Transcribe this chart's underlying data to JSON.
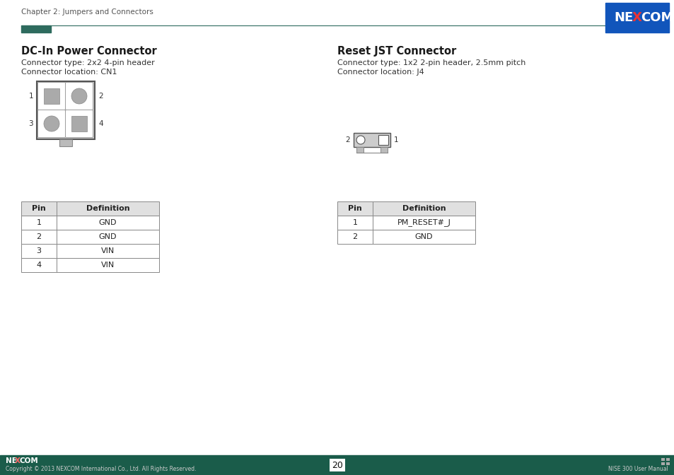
{
  "bg_color": "#ffffff",
  "header_accent_color": "#2e6b5e",
  "header_text": "Chapter 2: Jumpers and Connectors",
  "footer_bg_color": "#1a5c4a",
  "footer_text_left": "Copyright © 2013 NEXCOM International Co., Ltd. All Rights Reserved.",
  "footer_text_center": "20",
  "footer_text_right": "NISE 300 User Manual",
  "nexcom_bg": "#1155bb",
  "left_section": {
    "title": "DC-In Power Connector",
    "line1": "Connector type: 2x2 4-pin header",
    "line2": "Connector location: CN1",
    "table_headers": [
      "Pin",
      "Definition"
    ],
    "table_rows": [
      [
        "1",
        "GND"
      ],
      [
        "2",
        "GND"
      ],
      [
        "3",
        "VIN"
      ],
      [
        "4",
        "VIN"
      ]
    ]
  },
  "right_section": {
    "title": "Reset JST Connector",
    "line1": "Connector type: 1x2 2-pin header, 2.5mm pitch",
    "line2": "Connector location: J4",
    "table_headers": [
      "Pin",
      "Definition"
    ],
    "table_rows": [
      [
        "1",
        "PM_RESET#_J"
      ],
      [
        "2",
        "GND"
      ]
    ]
  }
}
